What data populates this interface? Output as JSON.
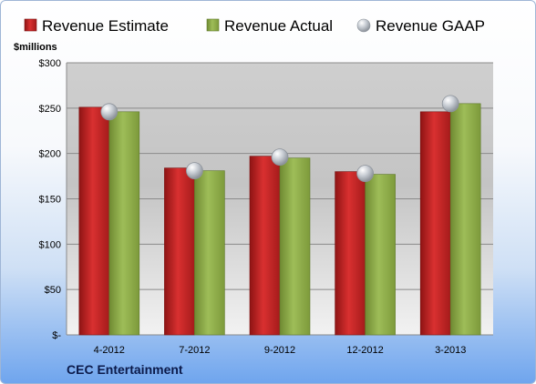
{
  "chart_data": {
    "type": "bar",
    "unit_label": "$millions",
    "categories": [
      "4-2012",
      "7-2012",
      "9-2012",
      "12-2012",
      "3-2013"
    ],
    "series": [
      {
        "name": "Revenue Estimate",
        "values": [
          251,
          184,
          197,
          180,
          246
        ],
        "color": "#cc2a2a",
        "kind": "bar"
      },
      {
        "name": "Revenue Actual",
        "values": [
          246,
          181,
          195,
          177,
          255
        ],
        "color": "#8fae4a",
        "kind": "bar"
      },
      {
        "name": "Revenue GAAP",
        "values": [
          246,
          181,
          196,
          178,
          255
        ],
        "color": "#b9bec6",
        "kind": "marker"
      }
    ],
    "ylim": [
      0,
      300
    ],
    "yticks": [
      {
        "value": 0,
        "label": "$-"
      },
      {
        "value": 50,
        "label": "$50"
      },
      {
        "value": 100,
        "label": "$100"
      },
      {
        "value": 150,
        "label": "$150"
      },
      {
        "value": 200,
        "label": "$200"
      },
      {
        "value": 250,
        "label": "$250"
      },
      {
        "value": 300,
        "label": "$300"
      }
    ],
    "grid": true,
    "legend_position": "top"
  },
  "footer": {
    "company": "CEC Entertainment"
  }
}
